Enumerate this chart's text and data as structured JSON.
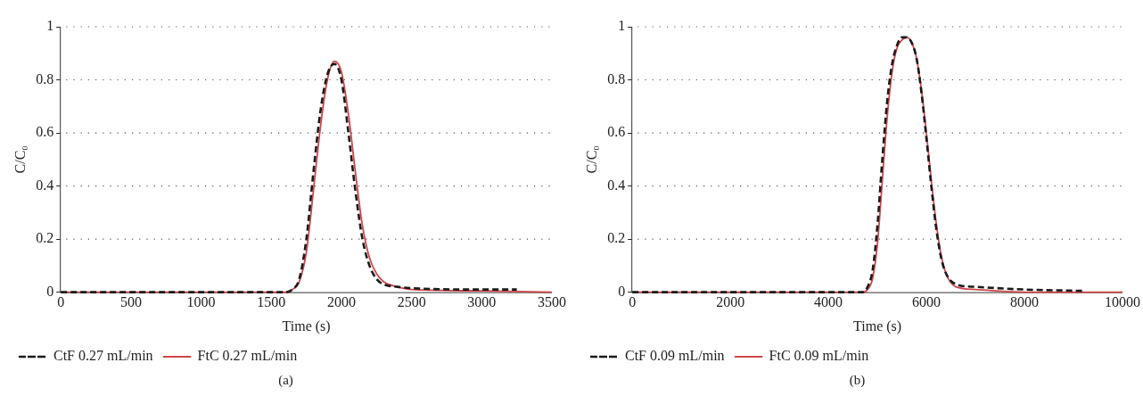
{
  "chart_data": [
    {
      "type": "line",
      "xlabel": "Time (s)",
      "ylabel": "C/C₀",
      "xlim": [
        0,
        3500
      ],
      "xticks": [
        0,
        500,
        1000,
        1500,
        2000,
        2500,
        3000,
        3500
      ],
      "ylim": [
        0,
        1
      ],
      "yticks": [
        0,
        0.2,
        0.4,
        0.6,
        0.8,
        1
      ],
      "grid": "y",
      "legend": "bottom left",
      "marker": "none",
      "annotations": [
        "(a)"
      ],
      "series": [
        {
          "name": "CtF 0.27 mL/min",
          "color": "#1a1a1a",
          "line_style": "dashed",
          "x": [
            0,
            500,
            1000,
            1500,
            1600,
            1650,
            1700,
            1750,
            1800,
            1850,
            1900,
            1950,
            2000,
            2050,
            2100,
            2150,
            2200,
            2250,
            2300,
            2400,
            2500,
            3000,
            3250
          ],
          "values": [
            0,
            0,
            0,
            0,
            0,
            0.01,
            0.05,
            0.2,
            0.45,
            0.68,
            0.82,
            0.86,
            0.8,
            0.6,
            0.38,
            0.2,
            0.1,
            0.05,
            0.03,
            0.02,
            0.015,
            0.01,
            0.01
          ]
        },
        {
          "name": "FtC 0.27 mL/min",
          "color": "#d0464a",
          "line_style": "solid",
          "x": [
            0,
            1600,
            1650,
            1700,
            1750,
            1800,
            1850,
            1900,
            1950,
            2000,
            2050,
            2100,
            2150,
            2200,
            2250,
            2300,
            2400,
            2500,
            3000,
            3500
          ],
          "values": [
            0,
            0,
            0.01,
            0.04,
            0.15,
            0.38,
            0.62,
            0.8,
            0.87,
            0.83,
            0.67,
            0.45,
            0.25,
            0.13,
            0.07,
            0.04,
            0.02,
            0.01,
            0.005,
            0
          ]
        }
      ]
    },
    {
      "type": "line",
      "xlabel": "Time (s)",
      "ylabel": "C/C₀",
      "xlim": [
        0,
        10000
      ],
      "xticks": [
        0,
        2000,
        4000,
        6000,
        8000,
        10000
      ],
      "ylim": [
        0,
        1
      ],
      "yticks": [
        0,
        0.2,
        0.4,
        0.6,
        0.8,
        1
      ],
      "grid": "y",
      "legend": "bottom left",
      "marker": "none",
      "annotations": [
        "(b)"
      ],
      "series": [
        {
          "name": "CtF 0.09 mL/min",
          "color": "#1a1a1a",
          "line_style": "dashed",
          "x": [
            0,
            4700,
            4800,
            4900,
            5000,
            5100,
            5200,
            5300,
            5400,
            5500,
            5600,
            5700,
            5800,
            5900,
            6000,
            6100,
            6200,
            6300,
            6400,
            6600,
            7000,
            8000,
            9200
          ],
          "values": [
            0,
            0,
            0.02,
            0.08,
            0.25,
            0.5,
            0.72,
            0.86,
            0.93,
            0.96,
            0.96,
            0.94,
            0.88,
            0.75,
            0.58,
            0.4,
            0.24,
            0.13,
            0.07,
            0.03,
            0.02,
            0.01,
            0.005
          ]
        },
        {
          "name": "FtC 0.09 mL/min",
          "color": "#d0464a",
          "line_style": "solid",
          "x": [
            0,
            4700,
            4800,
            4900,
            5000,
            5100,
            5200,
            5300,
            5400,
            5500,
            5600,
            5700,
            5800,
            5900,
            6000,
            6100,
            6200,
            6300,
            6400,
            6600,
            7000,
            8000,
            10000
          ],
          "values": [
            0,
            0,
            0.01,
            0.05,
            0.18,
            0.42,
            0.66,
            0.83,
            0.92,
            0.95,
            0.96,
            0.94,
            0.88,
            0.76,
            0.6,
            0.42,
            0.26,
            0.14,
            0.07,
            0.02,
            0.01,
            0,
            0
          ]
        }
      ]
    }
  ]
}
